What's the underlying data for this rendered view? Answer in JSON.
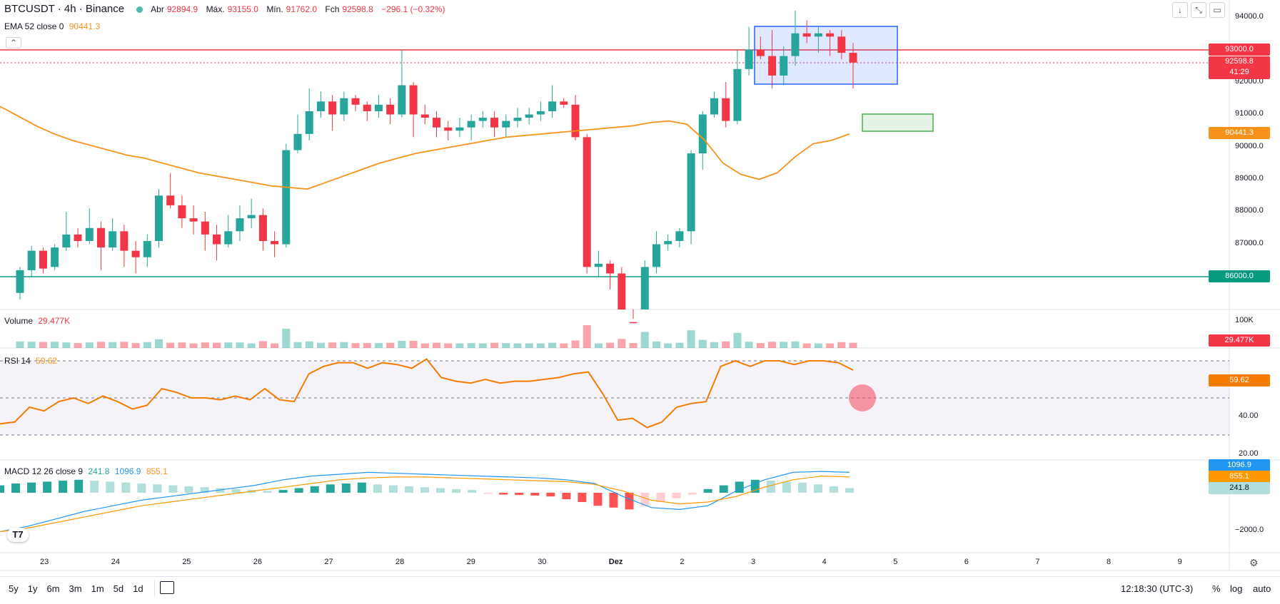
{
  "header": {
    "symbol": "BTCUSDT · 4h · Binance",
    "open_label": "Abr",
    "open": "92894.9",
    "high_label": "Máx.",
    "high": "93155.0",
    "low_label": "Mín.",
    "low": "91762.0",
    "close_label": "Fch",
    "close": "92598.8",
    "change": "−296.1 (−0.32%)",
    "ema_label": "EMA 52 close 0",
    "ema_value": "90441.3"
  },
  "price_axis": [
    "94000.0",
    "93000.0",
    "92000.0",
    "91000.0",
    "90000.0",
    "89000.0",
    "88000.0",
    "87000.0",
    "86000.0"
  ],
  "price_labels": {
    "line_93000": "93000.0",
    "last": "92598.8",
    "countdown": "41:29",
    "ema": "90441.3",
    "line_86000": "86000.0"
  },
  "volume": {
    "label": "Volume",
    "value": "29.477K",
    "axis_top": "100K",
    "badge": "29.477K"
  },
  "rsi": {
    "label": "RSI 14",
    "value": "59.62",
    "axis": [
      "40.00",
      "20.00"
    ],
    "badge": "59.62"
  },
  "macd": {
    "label": "MACD 12 26 close 9",
    "hist": "241.8",
    "macd": "1096.9",
    "signal": "855.1",
    "axis": [
      "−2000.0"
    ],
    "badges": [
      "1096.9",
      "855.1",
      "241.8"
    ]
  },
  "time_axis": [
    "23",
    "24",
    "25",
    "26",
    "27",
    "28",
    "29",
    "30",
    "Dez",
    "2",
    "3",
    "4",
    "5",
    "6",
    "7",
    "8",
    "9"
  ],
  "bottom_bar": {
    "ranges": [
      "5y",
      "1y",
      "6m",
      "3m",
      "1m",
      "5d",
      "1d"
    ],
    "clock": "12:18:30 (UTC-3)",
    "percent": "%",
    "log": "log",
    "auto": "auto"
  },
  "colors": {
    "up": "#26a69a",
    "down": "#f23645",
    "ema": "#f7931a",
    "macd": "#2196f3",
    "signal": "#ff9800",
    "support": "#089981",
    "resistance": "#f23645"
  },
  "icons": [
    "arrow-down-icon",
    "collapse-icon",
    "fullscreen-icon",
    "chevron-up-icon",
    "calendar-icon",
    "tradingview-logo-icon",
    "gear-icon"
  ],
  "chart_data": {
    "type": "candlestick",
    "ylim": [
      85000,
      94500
    ],
    "ema_series": [
      91250,
      90950,
      90650,
      90400,
      90200,
      90050,
      89900,
      89750,
      89650,
      89500,
      89350,
      89200,
      89100,
      89000,
      88900,
      88800,
      88750,
      88700,
      88900,
      89100,
      89300,
      89500,
      89650,
      89800,
      89900,
      90000,
      90100,
      90200,
      90300,
      90350,
      90400,
      90450,
      90500,
      90550,
      90600,
      90650,
      90750,
      90800,
      90700,
      90200,
      89500,
      89150,
      89000,
      89200,
      89700,
      90100,
      90200,
      90400
    ],
    "horizontal_lines": [
      {
        "value": 93000,
        "color": "#f23645"
      },
      {
        "value": 86000,
        "color": "#089981"
      }
    ],
    "rsi_levels": [
      70,
      50,
      30
    ]
  }
}
